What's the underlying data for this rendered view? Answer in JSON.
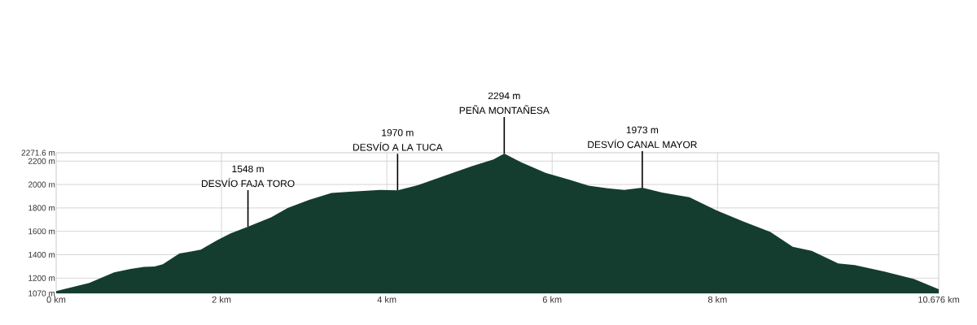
{
  "chart_data": {
    "type": "area",
    "color": "#143d2f",
    "grid": true,
    "xlim": [
      0,
      10.676
    ],
    "ylim": [
      1070,
      2271.6
    ],
    "xticks": [
      {
        "value": 0,
        "label": "0 km"
      },
      {
        "value": 2,
        "label": "2 km"
      },
      {
        "value": 4,
        "label": "4 km"
      },
      {
        "value": 6,
        "label": "6 km"
      },
      {
        "value": 8,
        "label": "8 km"
      },
      {
        "value": 10.676,
        "label": "10.676 km"
      }
    ],
    "yticks": [
      {
        "value": 1070,
        "label": "1070 m"
      },
      {
        "value": 1200,
        "label": "1200 m"
      },
      {
        "value": 1400,
        "label": "1400 m"
      },
      {
        "value": 1600,
        "label": "1600 m"
      },
      {
        "value": 1800,
        "label": "1800 m"
      },
      {
        "value": 2000,
        "label": "2000 m"
      },
      {
        "value": 2200,
        "label": "2200 m"
      },
      {
        "value": 2271.6,
        "label": "2271.6 m"
      }
    ],
    "x": [
      0,
      0.4,
      0.7,
      0.9,
      1.06,
      1.19,
      1.29,
      1.49,
      1.62,
      1.75,
      1.95,
      2.11,
      2.32,
      2.6,
      2.8,
      3.06,
      3.33,
      3.55,
      3.92,
      4.13,
      4.38,
      4.7,
      5.03,
      5.29,
      5.42,
      5.62,
      5.92,
      6.21,
      6.44,
      6.67,
      6.87,
      7.09,
      7.33,
      7.66,
      7.99,
      8.31,
      8.64,
      8.91,
      9.14,
      9.46,
      9.66,
      10.02,
      10.38,
      10.676
    ],
    "values": [
      1089,
      1158,
      1249,
      1279,
      1295,
      1299,
      1318,
      1410,
      1426,
      1444,
      1525,
      1582,
      1640,
      1720,
      1800,
      1869,
      1927,
      1938,
      1954,
      1950,
      1996,
      2076,
      2157,
      2214,
      2265,
      2191,
      2099,
      2040,
      1990,
      1968,
      1954,
      1973,
      1931,
      1892,
      1778,
      1685,
      1594,
      1468,
      1433,
      1325,
      1311,
      1256,
      1192,
      1104
    ],
    "annotations": [
      {
        "text": "DESVÍO FAJA TORO",
        "x": 2.32,
        "y": 1640
      },
      "1548 m",
      {
        "text": "DESVÍO A LA TUCA",
        "x": 4.13,
        "y": 1950
      },
      "1970 m",
      {
        "text": "PEÑA MONTAÑESA",
        "x": 5.42,
        "y": 2265
      },
      "2294 m",
      {
        "text": "DESVÍO CANAL MAYOR",
        "x": 7.09,
        "y": 1973
      },
      "1973 m"
    ]
  }
}
